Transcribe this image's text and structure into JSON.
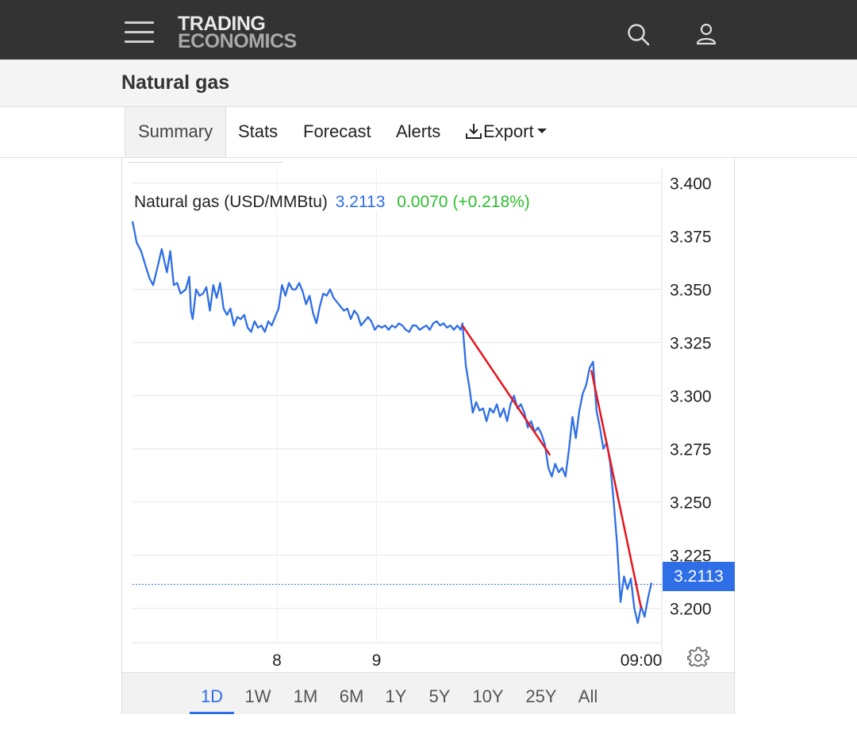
{
  "header": {
    "logo_line1": "TRADING",
    "logo_line2": "ECONOMICS",
    "icons": [
      "menu-icon",
      "search-icon",
      "user-icon"
    ]
  },
  "page": {
    "title": "Natural gas"
  },
  "tabs": [
    {
      "label": "Summary",
      "active": true
    },
    {
      "label": "Stats"
    },
    {
      "label": "Forecast"
    },
    {
      "label": "Alerts"
    },
    {
      "label": "Export",
      "icon": "download-icon",
      "has_dropdown": true
    }
  ],
  "legend": {
    "name": "Natural gas (USD/MMBtu)",
    "value": "3.2113",
    "change": "0.0070 (+0.218%)"
  },
  "price_tag": "3.2113",
  "ranges": [
    "1D",
    "1W",
    "1M",
    "6M",
    "1Y",
    "5Y",
    "10Y",
    "25Y",
    "All"
  ],
  "active_range": "1D",
  "colors": {
    "line": "#2e6ee6",
    "trendline": "#e8141c",
    "change_positive": "#2ebd2e",
    "header_bg": "#333333"
  },
  "chart_data": {
    "type": "line",
    "series": [
      {
        "name": "Natural gas (USD/MMBtu)",
        "points": [
          [
            0,
            3.382
          ],
          [
            1.2,
            3.372
          ],
          [
            2.5,
            3.368
          ],
          [
            4,
            3.36
          ],
          [
            5,
            3.355
          ],
          [
            6,
            3.352
          ],
          [
            7.5,
            3.362
          ],
          [
            8.5,
            3.369
          ],
          [
            10,
            3.358
          ],
          [
            11,
            3.368
          ],
          [
            12,
            3.352
          ],
          [
            13,
            3.353
          ],
          [
            14,
            3.348
          ],
          [
            15.5,
            3.35
          ],
          [
            16.5,
            3.356
          ],
          [
            17,
            3.34
          ],
          [
            17.5,
            3.336
          ],
          [
            18.5,
            3.35
          ],
          [
            19.5,
            3.347
          ],
          [
            20.5,
            3.348
          ],
          [
            21.5,
            3.351
          ],
          [
            22.5,
            3.34
          ],
          [
            23.5,
            3.352
          ],
          [
            24.5,
            3.346
          ],
          [
            25.5,
            3.353
          ],
          [
            26.5,
            3.341
          ],
          [
            27.5,
            3.338
          ],
          [
            28.5,
            3.341
          ],
          [
            29.5,
            3.333
          ],
          [
            30.5,
            3.337
          ],
          [
            31.5,
            3.336
          ],
          [
            32.5,
            3.338
          ],
          [
            33.5,
            3.332
          ],
          [
            34.5,
            3.33
          ],
          [
            35.5,
            3.335
          ],
          [
            36.5,
            3.332
          ],
          [
            37.5,
            3.333
          ],
          [
            38.5,
            3.33
          ],
          [
            39.5,
            3.335
          ],
          [
            40.5,
            3.333
          ],
          [
            41.5,
            3.337
          ],
          [
            42.5,
            3.341
          ],
          [
            43.5,
            3.352
          ],
          [
            44.5,
            3.347
          ],
          [
            45.5,
            3.353
          ],
          [
            46.5,
            3.35
          ],
          [
            47.5,
            3.35
          ],
          [
            48.5,
            3.353
          ],
          [
            49.5,
            3.349
          ],
          [
            50.5,
            3.343
          ],
          [
            51.5,
            3.347
          ],
          [
            52.5,
            3.339
          ],
          [
            53.5,
            3.334
          ],
          [
            54.5,
            3.342
          ],
          [
            55.5,
            3.348
          ],
          [
            56.5,
            3.347
          ],
          [
            57.5,
            3.35
          ],
          [
            58.5,
            3.346
          ],
          [
            59.5,
            3.344
          ],
          [
            60.5,
            3.342
          ],
          [
            61.5,
            3.34
          ],
          [
            62.5,
            3.341
          ],
          [
            63.5,
            3.336
          ],
          [
            64.5,
            3.34
          ],
          [
            65.5,
            3.338
          ],
          [
            66.5,
            3.333
          ],
          [
            67.5,
            3.335
          ],
          [
            68.5,
            3.337
          ],
          [
            69.5,
            3.335
          ],
          [
            70.5,
            3.331
          ],
          [
            71.5,
            3.333
          ],
          [
            72.5,
            3.332
          ],
          [
            73.5,
            3.333
          ],
          [
            74.5,
            3.331
          ],
          [
            75.5,
            3.333
          ],
          [
            76.5,
            3.332
          ],
          [
            77.5,
            3.334
          ],
          [
            78.5,
            3.333
          ],
          [
            79.5,
            3.331
          ],
          [
            80.5,
            3.33
          ],
          [
            81.5,
            3.333
          ],
          [
            82.5,
            3.333
          ],
          [
            83.5,
            3.331
          ],
          [
            84.5,
            3.332
          ],
          [
            85.5,
            3.333
          ],
          [
            86.5,
            3.331
          ],
          [
            87.5,
            3.334
          ],
          [
            88.5,
            3.335
          ],
          [
            89.5,
            3.333
          ],
          [
            90.5,
            3.334
          ],
          [
            91.5,
            3.332
          ],
          [
            92.5,
            3.333
          ],
          [
            93.5,
            3.331
          ],
          [
            94.5,
            3.333
          ],
          [
            95.5,
            3.331
          ],
          [
            96,
            3.334
          ],
          [
            97,
            3.314
          ],
          [
            98,
            3.304
          ],
          [
            99,
            3.292
          ],
          [
            100,
            3.297
          ],
          [
            101,
            3.293
          ],
          [
            102,
            3.294
          ],
          [
            103,
            3.288
          ],
          [
            104,
            3.294
          ],
          [
            105,
            3.292
          ],
          [
            106,
            3.296
          ],
          [
            107,
            3.29
          ],
          [
            108,
            3.294
          ],
          [
            109,
            3.288
          ],
          [
            110,
            3.296
          ],
          [
            111,
            3.3
          ],
          [
            112,
            3.294
          ],
          [
            113,
            3.296
          ],
          [
            114,
            3.292
          ],
          [
            115,
            3.285
          ],
          [
            116,
            3.288
          ],
          [
            117,
            3.283
          ],
          [
            118,
            3.285
          ],
          [
            119,
            3.282
          ],
          [
            120,
            3.277
          ],
          [
            121,
            3.266
          ],
          [
            122,
            3.262
          ],
          [
            123,
            3.268
          ],
          [
            124,
            3.264
          ],
          [
            125,
            3.266
          ],
          [
            126,
            3.262
          ],
          [
            127,
            3.275
          ],
          [
            128,
            3.29
          ],
          [
            129,
            3.28
          ],
          [
            130,
            3.293
          ],
          [
            131,
            3.301
          ],
          [
            132,
            3.305
          ],
          [
            133,
            3.313
          ],
          [
            134,
            3.316
          ],
          [
            135,
            3.293
          ],
          [
            136,
            3.285
          ],
          [
            137,
            3.275
          ],
          [
            138,
            3.278
          ],
          [
            139,
            3.268
          ],
          [
            140,
            3.25
          ],
          [
            141,
            3.23
          ],
          [
            142,
            3.203
          ],
          [
            143,
            3.215
          ],
          [
            144,
            3.209
          ],
          [
            145,
            3.214
          ],
          [
            146,
            3.2
          ],
          [
            147,
            3.193
          ],
          [
            148,
            3.201
          ],
          [
            149,
            3.196
          ],
          [
            150,
            3.205
          ],
          [
            151,
            3.212
          ]
        ]
      }
    ],
    "trendlines": [
      {
        "from": [
          96,
          3.333
        ],
        "to": [
          121.5,
          3.272
        ]
      },
      {
        "from": [
          133.5,
          3.312
        ],
        "to": [
          148,
          3.2
        ]
      }
    ],
    "x_ticks": [
      {
        "x": 42,
        "label": "8"
      },
      {
        "x": 71,
        "label": "9"
      },
      {
        "x": 148,
        "label": "09:00"
      }
    ],
    "xlim": [
      0,
      154
    ],
    "ylim": [
      3.1838,
      3.4066
    ],
    "yticks": [
      "3.400",
      "3.375",
      "3.350",
      "3.325",
      "3.300",
      "3.275",
      "3.250",
      "3.225",
      "3.200"
    ],
    "last_value": 3.2113,
    "grid": true,
    "xlabel": "",
    "ylabel": ""
  }
}
